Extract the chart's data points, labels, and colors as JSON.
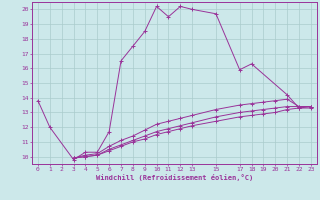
{
  "xlabel": "Windchill (Refroidissement éolien,°C)",
  "bg_color": "#cce8ea",
  "grid_color": "#aacccc",
  "line_color": "#993399",
  "xmin": -0.5,
  "xmax": 23.5,
  "ymin": 9.5,
  "ymax": 20.5,
  "xticks": [
    0,
    1,
    2,
    3,
    4,
    5,
    6,
    7,
    8,
    9,
    10,
    11,
    12,
    13,
    15,
    17,
    18,
    19,
    20,
    21,
    22,
    23
  ],
  "yticks": [
    10,
    11,
    12,
    13,
    14,
    15,
    16,
    17,
    18,
    19,
    20
  ],
  "series": [
    {
      "x": [
        0,
        1,
        3,
        4,
        5,
        6,
        7,
        8,
        9,
        10,
        11,
        12,
        13,
        15,
        17,
        18,
        21,
        22,
        23
      ],
      "y": [
        13.8,
        12.0,
        9.8,
        10.3,
        10.3,
        11.7,
        16.5,
        17.5,
        18.5,
        20.2,
        19.5,
        20.2,
        20.0,
        19.7,
        15.9,
        16.3,
        14.2,
        13.3,
        13.4
      ]
    },
    {
      "x": [
        3,
        4,
        5,
        6,
        7,
        8,
        9,
        10,
        11,
        12,
        13,
        15,
        17,
        18,
        19,
        20,
        21,
        22,
        23
      ],
      "y": [
        9.9,
        10.1,
        10.2,
        10.7,
        11.1,
        11.4,
        11.8,
        12.2,
        12.4,
        12.6,
        12.8,
        13.2,
        13.5,
        13.6,
        13.7,
        13.8,
        13.9,
        13.4,
        13.4
      ]
    },
    {
      "x": [
        3,
        4,
        5,
        6,
        7,
        8,
        9,
        10,
        11,
        12,
        13,
        15,
        17,
        18,
        19,
        20,
        21,
        22,
        23
      ],
      "y": [
        9.9,
        10.0,
        10.1,
        10.5,
        10.8,
        11.1,
        11.4,
        11.7,
        11.9,
        12.1,
        12.3,
        12.7,
        13.0,
        13.1,
        13.2,
        13.3,
        13.4,
        13.4,
        13.4
      ]
    },
    {
      "x": [
        3,
        4,
        5,
        6,
        7,
        8,
        9,
        10,
        11,
        12,
        13,
        15,
        17,
        18,
        19,
        20,
        21,
        22,
        23
      ],
      "y": [
        9.9,
        10.0,
        10.1,
        10.4,
        10.7,
        11.0,
        11.2,
        11.5,
        11.7,
        11.9,
        12.1,
        12.4,
        12.7,
        12.8,
        12.9,
        13.0,
        13.2,
        13.3,
        13.3
      ]
    }
  ]
}
